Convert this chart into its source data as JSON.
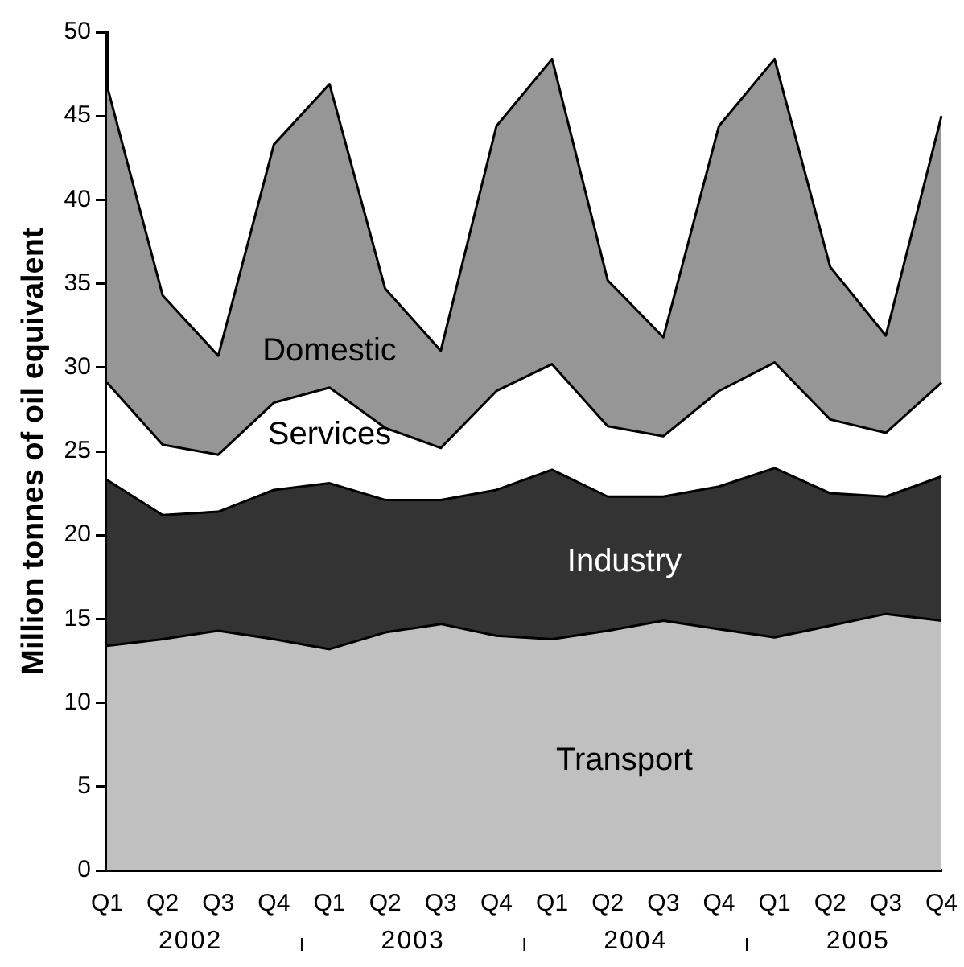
{
  "chart_data": {
    "type": "area",
    "stacked": true,
    "ylabel": "Million tonnes of oil equivalent",
    "categories": [
      "Q1",
      "Q2",
      "Q3",
      "Q4",
      "Q1",
      "Q2",
      "Q3",
      "Q4",
      "Q1",
      "Q2",
      "Q3",
      "Q4",
      "Q1",
      "Q2",
      "Q3",
      "Q4"
    ],
    "series": [
      {
        "name": "Transport",
        "color": "#c0c0c0",
        "values": [
          13.4,
          13.8,
          14.3,
          13.8,
          13.2,
          14.2,
          14.7,
          14.0,
          13.8,
          14.3,
          14.9,
          14.4,
          13.9,
          14.6,
          15.3,
          14.9
        ]
      },
      {
        "name": "Industry",
        "color": "#333333",
        "values": [
          9.9,
          7.4,
          7.1,
          8.9,
          9.9,
          7.9,
          7.4,
          8.7,
          10.1,
          8.0,
          7.4,
          8.5,
          10.1,
          7.9,
          7.0,
          8.6
        ]
      },
      {
        "name": "Services",
        "color": "#ffffff",
        "values": [
          5.8,
          4.2,
          3.4,
          5.2,
          5.7,
          4.3,
          3.1,
          5.9,
          6.3,
          4.2,
          3.6,
          5.7,
          6.3,
          4.4,
          3.8,
          5.6
        ]
      },
      {
        "name": "Domestic",
        "color": "#969696",
        "values": [
          17.7,
          8.9,
          5.9,
          15.4,
          18.1,
          8.3,
          5.8,
          15.8,
          18.2,
          8.7,
          5.9,
          15.8,
          18.1,
          9.1,
          5.8,
          15.9
        ]
      }
    ],
    "ylim": [
      0,
      50
    ],
    "yticks": [
      0,
      5,
      10,
      15,
      20,
      25,
      30,
      35,
      40,
      45,
      50
    ],
    "grid": false,
    "legend": false,
    "annotations": [
      "2002",
      "2003",
      "2004",
      "2005"
    ]
  }
}
